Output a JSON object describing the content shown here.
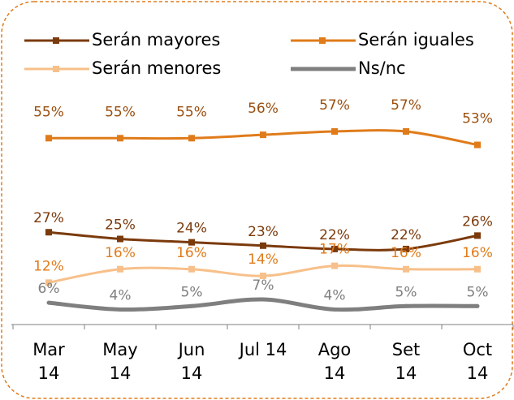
{
  "chart_data": {
    "type": "line",
    "categories": [
      "Mar 14",
      "May 14",
      "Jun 14",
      "Jul 14",
      "Ago 14",
      "Set 14",
      "Oct 14"
    ],
    "series": [
      {
        "name": "Serán mayores",
        "color": "#7b3a0c",
        "values": [
          27,
          25,
          24,
          23,
          22,
          22,
          26
        ],
        "value_labels": [
          "27%",
          "25%",
          "24%",
          "23%",
          "22%",
          "22%",
          "26%"
        ]
      },
      {
        "name": "Serán iguales",
        "color": "#e07b1a",
        "values": [
          55,
          55,
          55,
          56,
          57,
          57,
          53
        ],
        "value_labels": [
          "55%",
          "55%",
          "55%",
          "56%",
          "57%",
          "57%",
          "53%"
        ]
      },
      {
        "name": "Serán menores",
        "color": "#f7c08a",
        "values": [
          12,
          16,
          16,
          14,
          17,
          16,
          16
        ],
        "value_labels": [
          "12%",
          "16%",
          "16%",
          "14%",
          "17%",
          "16%",
          "16%"
        ]
      },
      {
        "name": "Ns/nc",
        "color": "#7f7f7f",
        "values": [
          6,
          4,
          5,
          7,
          4,
          5,
          5
        ],
        "value_labels": [
          "6%",
          "4%",
          "5%",
          "7%",
          "4%",
          "5%",
          "5%"
        ]
      }
    ],
    "ylim": [
      0,
      60
    ],
    "legend": "top"
  }
}
